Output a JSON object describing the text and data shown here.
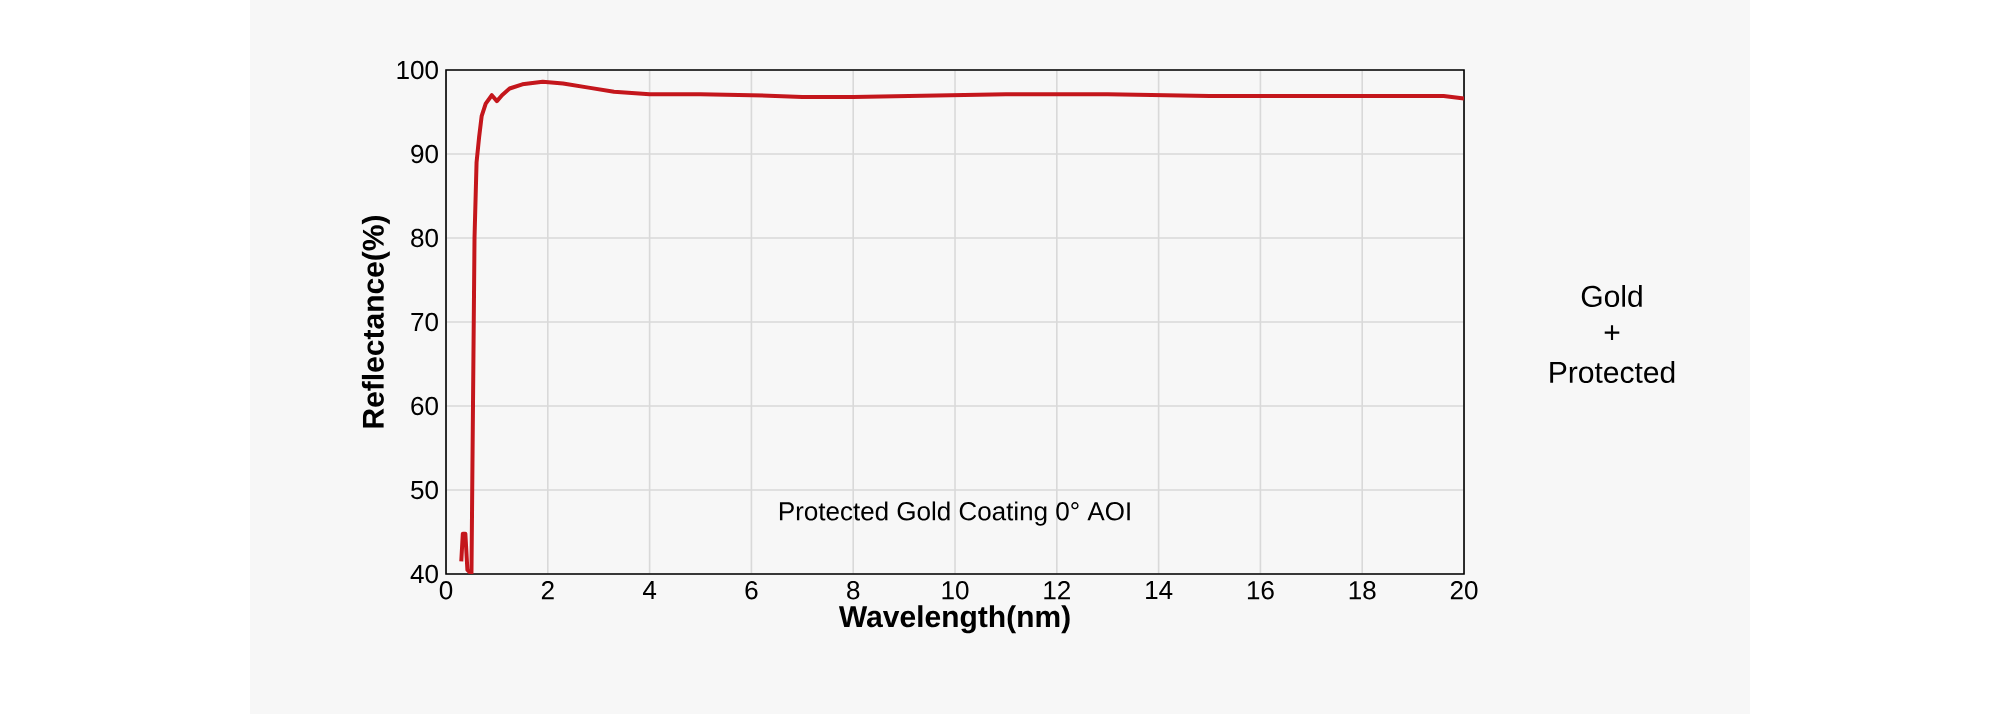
{
  "chart_data": {
    "type": "line",
    "xlabel": "Wavelength(nm)",
    "ylabel": "Reflectance(%)",
    "series": [
      {
        "color": "#c4161c",
        "x": [
          0.3,
          0.33,
          0.38,
          0.42,
          0.5,
          0.53,
          0.56,
          0.6,
          0.65,
          0.7,
          0.78,
          0.9,
          1.0,
          1.1,
          1.25,
          1.5,
          1.9,
          2.3,
          2.8,
          3.3,
          4,
          5,
          6,
          7,
          8,
          9,
          10,
          11,
          12,
          13,
          14,
          15,
          16,
          17,
          18,
          19,
          19.6,
          20
        ],
        "values": [
          41.5,
          44.8,
          44.8,
          40.5,
          40,
          60,
          80,
          89,
          92,
          94.5,
          96,
          97,
          96.3,
          97,
          97.8,
          98.3,
          98.6,
          98.4,
          97.9,
          97.4,
          97.1,
          97.1,
          97,
          96.8,
          96.8,
          96.9,
          97,
          97.1,
          97.1,
          97.1,
          97,
          96.9,
          96.9,
          96.9,
          96.9,
          96.9,
          96.9,
          96.6
        ]
      }
    ],
    "xlim": [
      0,
      20
    ],
    "ylim": [
      40,
      100
    ],
    "xticks": [
      0,
      2,
      4,
      6,
      8,
      10,
      12,
      14,
      16,
      18,
      20
    ],
    "yticks": [
      40,
      50,
      60,
      70,
      80,
      90,
      100
    ],
    "grid": true,
    "line_style": "solid",
    "marker": "none",
    "annotations": [
      "Protected Gold Coating  0°  AOI",
      "Gold",
      "+",
      "Protected"
    ]
  }
}
